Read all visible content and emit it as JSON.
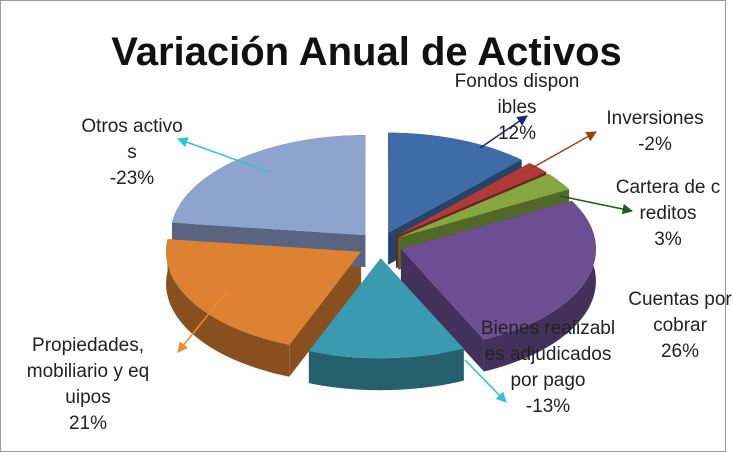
{
  "chart_data": {
    "type": "pie3d",
    "title": "Variación Anual de Activos",
    "categories": [
      "Fondos disponibles",
      "Inversiones",
      "Cartera de creditos",
      "Cuentas por cobrar",
      "Bienes realizables adjudicados por pago",
      "Propiedades, mobiliario y equipos",
      "Otros activos"
    ],
    "values": [
      12,
      -2,
      3,
      26,
      -13,
      21,
      -23
    ],
    "value_labels": [
      "12%",
      "-2%",
      "3%",
      "26%",
      "-13%",
      "21%",
      "-23%"
    ],
    "colors": [
      "#3f6ca8",
      "#b03a37",
      "#86a640",
      "#6c4f92",
      "#3a9bb0",
      "#dd8132",
      "#8fa3cf"
    ]
  }
}
